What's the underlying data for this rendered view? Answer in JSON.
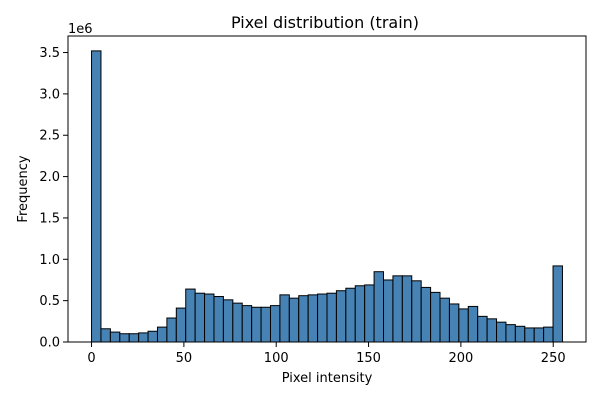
{
  "chart_data": {
    "type": "bar",
    "title": "Pixel distribution (train)",
    "xlabel": "Pixel intensity",
    "ylabel": "Frequency",
    "y_multiplier_label": "1e6",
    "bar_color": "#4682b4",
    "edge_color": "#000000",
    "xlim": [
      -12.75,
      267.75
    ],
    "ylim": [
      0,
      3.7
    ],
    "xticks": [
      0,
      50,
      100,
      150,
      200,
      250
    ],
    "yticks": [
      0.0,
      0.5,
      1.0,
      1.5,
      2.0,
      2.5,
      3.0,
      3.5
    ],
    "ytick_labels": [
      "0.0",
      "0.5",
      "1.0",
      "1.5",
      "2.0",
      "2.5",
      "3.0",
      "3.5"
    ],
    "bin_start": 0,
    "bin_width": 5.1,
    "values": [
      3.52,
      0.16,
      0.12,
      0.1,
      0.1,
      0.11,
      0.13,
      0.18,
      0.29,
      0.41,
      0.64,
      0.59,
      0.58,
      0.55,
      0.51,
      0.47,
      0.44,
      0.42,
      0.42,
      0.44,
      0.57,
      0.53,
      0.56,
      0.57,
      0.58,
      0.59,
      0.62,
      0.65,
      0.68,
      0.69,
      0.85,
      0.75,
      0.8,
      0.8,
      0.74,
      0.66,
      0.6,
      0.53,
      0.46,
      0.4,
      0.43,
      0.31,
      0.28,
      0.24,
      0.21,
      0.19,
      0.17,
      0.17,
      0.18,
      0.92
    ]
  }
}
